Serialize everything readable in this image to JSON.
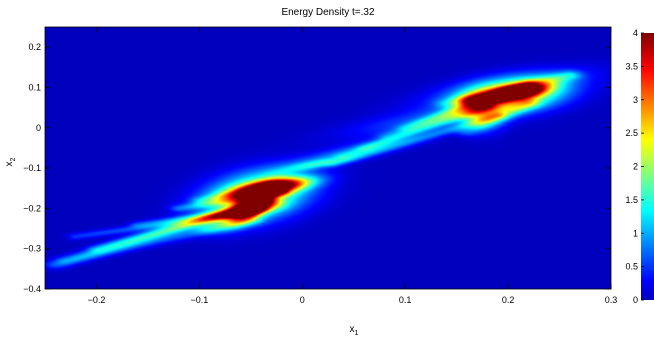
{
  "chart_data": {
    "type": "heatmap",
    "title": "Energy Density t=.32",
    "xlabel": {
      "base": "x",
      "sub": "1"
    },
    "ylabel": {
      "base": "x",
      "sub": "2"
    },
    "xlim": [
      -0.25,
      0.3
    ],
    "ylim": [
      -0.4,
      0.25
    ],
    "xticks": [
      {
        "v": -0.2,
        "label": "−0.2"
      },
      {
        "v": -0.1,
        "label": "−0.1"
      },
      {
        "v": 0,
        "label": "0"
      },
      {
        "v": 0.1,
        "label": "0.1"
      },
      {
        "v": 0.2,
        "label": "0.2"
      },
      {
        "v": 0.3,
        "label": "0.3"
      }
    ],
    "yticks": [
      {
        "v": 0.2,
        "label": "0.2"
      },
      {
        "v": 0.1,
        "label": "0.1"
      },
      {
        "v": 0,
        "label": "0"
      },
      {
        "v": -0.1,
        "label": "−0.1"
      },
      {
        "v": -0.2,
        "label": "−0.2"
      },
      {
        "v": -0.3,
        "label": "−0.3"
      },
      {
        "v": -0.4,
        "label": "−0.4"
      }
    ],
    "colorbar": {
      "range": [
        0,
        4
      ],
      "ticks": [
        {
          "v": 4,
          "label": "4"
        },
        {
          "v": 3.5,
          "label": "3.5"
        },
        {
          "v": 3,
          "label": "3"
        },
        {
          "v": 2.5,
          "label": "2.5"
        },
        {
          "v": 2,
          "label": "2"
        },
        {
          "v": 1.5,
          "label": "1.5"
        },
        {
          "v": 1,
          "label": "1"
        },
        {
          "v": 0.5,
          "label": "0.5"
        },
        {
          "v": 0,
          "label": "0"
        }
      ],
      "colormap": "jet"
    },
    "features": [
      {
        "shape": "blob",
        "x": -0.045,
        "y": -0.17,
        "sx": 0.03,
        "sy": 0.045,
        "rot": -30,
        "peak": 2.5
      },
      {
        "shape": "blob",
        "x": -0.03,
        "y": -0.148,
        "sx": 0.026,
        "sy": 0.011,
        "rot": 25,
        "peak": 4.0
      },
      {
        "shape": "blob",
        "x": -0.047,
        "y": -0.188,
        "sx": 0.009,
        "sy": 0.03,
        "rot": -20,
        "peak": 3.8
      },
      {
        "shape": "blob",
        "x": 0.205,
        "y": 0.08,
        "sx": 0.037,
        "sy": 0.026,
        "rot": 30,
        "peak": 2.5
      },
      {
        "shape": "blob",
        "x": 0.21,
        "y": 0.088,
        "sx": 0.02,
        "sy": 0.01,
        "rot": 30,
        "peak": 4.0
      },
      {
        "shape": "blob",
        "x": 0.175,
        "y": 0.04,
        "sx": 0.014,
        "sy": 0.03,
        "rot": 0,
        "peak": 1.6
      },
      {
        "shape": "blob",
        "x": 0.165,
        "y": 0.07,
        "sx": 0.012,
        "sy": 0.008,
        "rot": 30,
        "peak": 1.4
      },
      {
        "shape": "blob",
        "x": 0.015,
        "y": -0.09,
        "sx": 0.025,
        "sy": 0.007,
        "rot": 25,
        "peak": 0.9
      },
      {
        "shape": "blob",
        "x": 0.05,
        "y": -0.06,
        "sx": 0.05,
        "sy": 0.012,
        "rot": 30,
        "peak": 0.8
      },
      {
        "shape": "blob",
        "x": 0.12,
        "y": 0.02,
        "sx": 0.06,
        "sy": 0.018,
        "rot": 25,
        "peak": 0.6
      },
      {
        "shape": "blob",
        "x": 0.2,
        "y": 0.1,
        "sx": 0.06,
        "sy": 0.02,
        "rot": 25,
        "peak": 0.6
      },
      {
        "shape": "streak",
        "x1": -0.24,
        "y1": -0.34,
        "x2": -0.04,
        "y2": -0.185,
        "width": 0.008,
        "peak": 1.1
      },
      {
        "shape": "streak",
        "x1": -0.2,
        "y1": -0.3,
        "x2": -0.05,
        "y2": -0.2,
        "width": 0.007,
        "peak": 1.0
      },
      {
        "shape": "streak",
        "x1": -0.22,
        "y1": -0.27,
        "x2": -0.05,
        "y2": -0.21,
        "width": 0.006,
        "peak": 0.9
      },
      {
        "shape": "streak",
        "x1": -0.16,
        "y1": -0.24,
        "x2": -0.04,
        "y2": -0.2,
        "width": 0.006,
        "peak": 0.9
      },
      {
        "shape": "streak",
        "x1": -0.12,
        "y1": -0.2,
        "x2": -0.02,
        "y2": -0.16,
        "width": 0.006,
        "peak": 1.0
      },
      {
        "shape": "streak",
        "x1": -0.23,
        "y1": -0.33,
        "x2": -0.05,
        "y2": -0.23,
        "width": 0.008,
        "peak": 0.7
      },
      {
        "shape": "streak",
        "x1": -0.09,
        "y1": -0.25,
        "x2": -0.03,
        "y2": -0.19,
        "width": 0.01,
        "peak": 0.9
      },
      {
        "shape": "streak",
        "x1": -0.1,
        "y1": -0.18,
        "x2": -0.03,
        "y2": -0.15,
        "width": 0.006,
        "peak": 0.9
      },
      {
        "shape": "streak",
        "x1": 0.04,
        "y1": -0.07,
        "x2": 0.18,
        "y2": 0.05,
        "width": 0.006,
        "peak": 0.7
      },
      {
        "shape": "streak",
        "x1": 0.06,
        "y1": -0.05,
        "x2": 0.19,
        "y2": 0.07,
        "width": 0.006,
        "peak": 0.6
      },
      {
        "shape": "streak",
        "x1": 0.08,
        "y1": -0.02,
        "x2": 0.2,
        "y2": 0.09,
        "width": 0.006,
        "peak": 0.6
      },
      {
        "shape": "streak",
        "x1": 0.03,
        "y1": -0.09,
        "x2": 0.19,
        "y2": 0.03,
        "width": 0.006,
        "peak": 0.7
      },
      {
        "shape": "streak",
        "x1": 0.1,
        "y1": 0.0,
        "x2": 0.22,
        "y2": 0.11,
        "width": 0.006,
        "peak": 0.6
      },
      {
        "shape": "streak",
        "x1": 0.14,
        "y1": 0.06,
        "x2": 0.26,
        "y2": 0.13,
        "width": 0.008,
        "peak": 0.8
      },
      {
        "shape": "streak",
        "x1": 0.16,
        "y1": -0.01,
        "x2": 0.22,
        "y2": 0.06,
        "width": 0.008,
        "peak": 0.9
      }
    ]
  }
}
